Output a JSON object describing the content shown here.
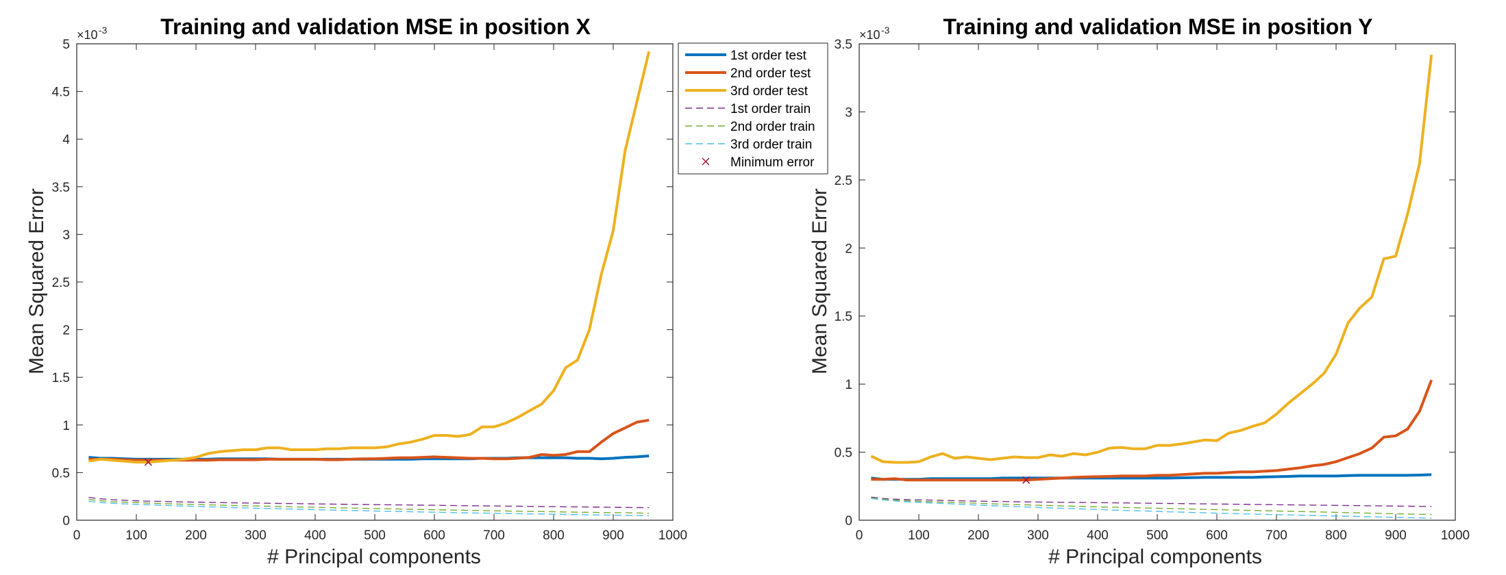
{
  "chart_data": [
    {
      "type": "line",
      "title": "Training and validation MSE in position X",
      "xlabel": "# Principal components",
      "ylabel": "Mean Squared Error",
      "y_exponent_base": "×10",
      "y_exponent_power": "-3",
      "xlim": [
        0,
        1000
      ],
      "ylim": [
        0,
        5
      ],
      "xticks": [
        0,
        100,
        200,
        300,
        400,
        500,
        600,
        700,
        800,
        900,
        1000
      ],
      "xtick_labels": [
        "0",
        "100",
        "200",
        "300",
        "400",
        "500",
        "600",
        "700",
        "800",
        "900",
        "1000"
      ],
      "yticks": [
        0,
        0.5,
        1,
        1.5,
        2,
        2.5,
        3,
        3.5,
        4,
        4.5,
        5
      ],
      "ytick_labels": [
        "0",
        "0.5",
        "1",
        "1.5",
        "2",
        "2.5",
        "3",
        "3.5",
        "4",
        "4.5",
        "5"
      ],
      "grid": false,
      "legend": "outside-right",
      "x": [
        20,
        40,
        60,
        80,
        100,
        120,
        140,
        160,
        180,
        200,
        220,
        240,
        260,
        280,
        300,
        320,
        340,
        360,
        380,
        400,
        420,
        440,
        460,
        480,
        500,
        520,
        540,
        560,
        580,
        600,
        620,
        640,
        660,
        680,
        700,
        720,
        740,
        760,
        780,
        800,
        820,
        840,
        860,
        880,
        900,
        920,
        940,
        960
      ],
      "series": [
        {
          "name": "1st order test",
          "style": "solid",
          "color": "#0072BD",
          "values": [
            0.66,
            0.65,
            0.65,
            0.645,
            0.64,
            0.64,
            0.64,
            0.64,
            0.64,
            0.64,
            0.64,
            0.645,
            0.645,
            0.645,
            0.645,
            0.645,
            0.64,
            0.64,
            0.64,
            0.64,
            0.64,
            0.64,
            0.64,
            0.64,
            0.64,
            0.64,
            0.64,
            0.64,
            0.645,
            0.645,
            0.645,
            0.645,
            0.645,
            0.65,
            0.65,
            0.65,
            0.655,
            0.655,
            0.655,
            0.655,
            0.655,
            0.65,
            0.65,
            0.645,
            0.65,
            0.66,
            0.665,
            0.675
          ]
        },
        {
          "name": "2nd order test",
          "style": "solid",
          "color": "#D95319",
          "values": [
            0.64,
            0.64,
            0.64,
            0.635,
            0.63,
            0.63,
            0.63,
            0.63,
            0.63,
            0.63,
            0.63,
            0.635,
            0.635,
            0.635,
            0.635,
            0.64,
            0.64,
            0.64,
            0.64,
            0.64,
            0.635,
            0.635,
            0.64,
            0.645,
            0.645,
            0.65,
            0.655,
            0.655,
            0.66,
            0.665,
            0.66,
            0.655,
            0.65,
            0.65,
            0.645,
            0.645,
            0.65,
            0.66,
            0.69,
            0.68,
            0.69,
            0.72,
            0.72,
            0.82,
            0.91,
            0.97,
            1.03,
            1.05
          ]
        },
        {
          "name": "3rd order test",
          "style": "solid",
          "color": "#EDB120",
          "values": [
            0.62,
            0.64,
            0.63,
            0.62,
            0.61,
            0.61,
            0.62,
            0.63,
            0.64,
            0.66,
            0.7,
            0.72,
            0.73,
            0.74,
            0.74,
            0.76,
            0.76,
            0.74,
            0.74,
            0.74,
            0.75,
            0.75,
            0.76,
            0.76,
            0.76,
            0.77,
            0.8,
            0.82,
            0.85,
            0.89,
            0.89,
            0.88,
            0.9,
            0.98,
            0.98,
            1.02,
            1.08,
            1.15,
            1.22,
            1.36,
            1.6,
            1.68,
            2.0,
            2.58,
            3.04,
            3.88,
            4.4,
            4.92
          ]
        },
        {
          "name": "1st order train",
          "style": "dashed",
          "color": "#7E2F8E",
          "values": [
            0.24,
            0.225,
            0.215,
            0.21,
            0.205,
            0.2,
            0.198,
            0.195,
            0.192,
            0.19,
            0.188,
            0.185,
            0.183,
            0.181,
            0.18,
            0.178,
            0.176,
            0.175,
            0.173,
            0.172,
            0.17,
            0.168,
            0.167,
            0.165,
            0.164,
            0.162,
            0.161,
            0.16,
            0.158,
            0.157,
            0.155,
            0.154,
            0.153,
            0.151,
            0.15,
            0.148,
            0.147,
            0.145,
            0.144,
            0.143,
            0.141,
            0.14,
            0.139,
            0.137,
            0.136,
            0.134,
            0.133,
            0.132
          ]
        },
        {
          "name": "2nd order train",
          "style": "dashed",
          "color": "#77AC30",
          "values": [
            0.22,
            0.205,
            0.195,
            0.19,
            0.185,
            0.18,
            0.175,
            0.172,
            0.168,
            0.165,
            0.162,
            0.158,
            0.155,
            0.152,
            0.15,
            0.147,
            0.144,
            0.141,
            0.138,
            0.136,
            0.133,
            0.13,
            0.128,
            0.125,
            0.123,
            0.12,
            0.118,
            0.115,
            0.113,
            0.11,
            0.108,
            0.106,
            0.103,
            0.101,
            0.099,
            0.097,
            0.095,
            0.093,
            0.091,
            0.089,
            0.087,
            0.085,
            0.083,
            0.081,
            0.079,
            0.078,
            0.076,
            0.074
          ]
        },
        {
          "name": "3rd order train",
          "style": "dashed",
          "color": "#4DBEEE",
          "values": [
            0.2,
            0.185,
            0.178,
            0.172,
            0.167,
            0.162,
            0.157,
            0.153,
            0.149,
            0.145,
            0.141,
            0.137,
            0.133,
            0.13,
            0.126,
            0.123,
            0.12,
            0.117,
            0.114,
            0.111,
            0.108,
            0.105,
            0.102,
            0.1,
            0.097,
            0.094,
            0.092,
            0.089,
            0.087,
            0.084,
            0.082,
            0.079,
            0.077,
            0.075,
            0.073,
            0.071,
            0.069,
            0.067,
            0.065,
            0.063,
            0.061,
            0.059,
            0.057,
            0.055,
            0.053,
            0.051,
            0.049,
            0.047
          ]
        }
      ],
      "minimum_marker": {
        "name": "Minimum error",
        "color": "#A2142F",
        "x": 120,
        "y": 0.61
      }
    },
    {
      "type": "line",
      "title": "Training and validation MSE in position Y",
      "xlabel": "# Principal components",
      "ylabel": "Mean Squared Error",
      "y_exponent_base": "×10",
      "y_exponent_power": "-3",
      "xlim": [
        0,
        1000
      ],
      "ylim": [
        0,
        3.5
      ],
      "xticks": [
        0,
        100,
        200,
        300,
        400,
        500,
        600,
        700,
        800,
        900,
        1000
      ],
      "xtick_labels": [
        "0",
        "100",
        "200",
        "300",
        "400",
        "500",
        "600",
        "700",
        "800",
        "900",
        "1000"
      ],
      "yticks": [
        0,
        0.5,
        1,
        1.5,
        2,
        2.5,
        3,
        3.5
      ],
      "ytick_labels": [
        "0",
        "0.5",
        "1",
        "1.5",
        "2",
        "2.5",
        "3",
        "3.5"
      ],
      "grid": false,
      "x": [
        20,
        40,
        60,
        80,
        100,
        120,
        140,
        160,
        180,
        200,
        220,
        240,
        260,
        280,
        300,
        320,
        340,
        360,
        380,
        400,
        420,
        440,
        460,
        480,
        500,
        520,
        540,
        560,
        580,
        600,
        620,
        640,
        660,
        680,
        700,
        720,
        740,
        760,
        780,
        800,
        820,
        840,
        860,
        880,
        900,
        920,
        940,
        960
      ],
      "series": [
        {
          "name": "1st order test",
          "style": "solid",
          "color": "#0072BD",
          "values": [
            0.31,
            0.3,
            0.3,
            0.3,
            0.3,
            0.305,
            0.305,
            0.305,
            0.305,
            0.305,
            0.305,
            0.31,
            0.31,
            0.31,
            0.31,
            0.31,
            0.31,
            0.31,
            0.31,
            0.31,
            0.31,
            0.31,
            0.31,
            0.31,
            0.31,
            0.31,
            0.312,
            0.313,
            0.315,
            0.315,
            0.315,
            0.315,
            0.315,
            0.318,
            0.32,
            0.322,
            0.325,
            0.325,
            0.325,
            0.325,
            0.328,
            0.33,
            0.33,
            0.33,
            0.33,
            0.33,
            0.332,
            0.335
          ]
        },
        {
          "name": "2nd order test",
          "style": "solid",
          "color": "#D95319",
          "values": [
            0.3,
            0.3,
            0.305,
            0.295,
            0.295,
            0.295,
            0.295,
            0.295,
            0.295,
            0.295,
            0.295,
            0.295,
            0.295,
            0.295,
            0.3,
            0.305,
            0.31,
            0.315,
            0.318,
            0.32,
            0.322,
            0.325,
            0.325,
            0.325,
            0.33,
            0.33,
            0.335,
            0.34,
            0.345,
            0.345,
            0.35,
            0.355,
            0.355,
            0.36,
            0.365,
            0.375,
            0.385,
            0.4,
            0.41,
            0.43,
            0.46,
            0.49,
            0.53,
            0.61,
            0.62,
            0.67,
            0.8,
            1.03
          ]
        },
        {
          "name": "3rd order test",
          "style": "solid",
          "color": "#EDB120",
          "values": [
            0.47,
            0.43,
            0.425,
            0.425,
            0.43,
            0.465,
            0.49,
            0.455,
            0.465,
            0.455,
            0.445,
            0.455,
            0.465,
            0.46,
            0.46,
            0.48,
            0.47,
            0.49,
            0.48,
            0.5,
            0.53,
            0.535,
            0.525,
            0.525,
            0.55,
            0.55,
            0.56,
            0.575,
            0.59,
            0.585,
            0.64,
            0.66,
            0.69,
            0.715,
            0.78,
            0.86,
            0.93,
            1.0,
            1.08,
            1.22,
            1.45,
            1.56,
            1.64,
            1.92,
            1.94,
            2.25,
            2.62,
            3.42
          ]
        },
        {
          "name": "1st order train",
          "style": "dashed",
          "color": "#7E2F8E",
          "values": [
            0.17,
            0.16,
            0.155,
            0.152,
            0.15,
            0.148,
            0.146,
            0.144,
            0.142,
            0.14,
            0.139,
            0.138,
            0.136,
            0.135,
            0.134,
            0.133,
            0.132,
            0.131,
            0.13,
            0.129,
            0.128,
            0.127,
            0.126,
            0.125,
            0.124,
            0.123,
            0.122,
            0.121,
            0.12,
            0.119,
            0.118,
            0.117,
            0.116,
            0.115,
            0.114,
            0.113,
            0.112,
            0.111,
            0.11,
            0.109,
            0.108,
            0.107,
            0.106,
            0.105,
            0.104,
            0.103,
            0.102,
            0.101
          ]
        },
        {
          "name": "2nd order train",
          "style": "dashed",
          "color": "#77AC30",
          "values": [
            0.165,
            0.155,
            0.148,
            0.143,
            0.139,
            0.136,
            0.133,
            0.13,
            0.127,
            0.124,
            0.121,
            0.118,
            0.115,
            0.113,
            0.11,
            0.108,
            0.105,
            0.103,
            0.1,
            0.098,
            0.096,
            0.094,
            0.092,
            0.09,
            0.088,
            0.086,
            0.084,
            0.082,
            0.08,
            0.078,
            0.076,
            0.074,
            0.072,
            0.07,
            0.068,
            0.066,
            0.064,
            0.062,
            0.06,
            0.058,
            0.056,
            0.054,
            0.052,
            0.05,
            0.048,
            0.046,
            0.044,
            0.042
          ]
        },
        {
          "name": "3rd order train",
          "style": "dashed",
          "color": "#4DBEEE",
          "values": [
            0.16,
            0.15,
            0.142,
            0.136,
            0.131,
            0.127,
            0.123,
            0.119,
            0.115,
            0.111,
            0.107,
            0.104,
            0.1,
            0.097,
            0.094,
            0.091,
            0.088,
            0.085,
            0.082,
            0.079,
            0.076,
            0.073,
            0.07,
            0.068,
            0.065,
            0.062,
            0.06,
            0.057,
            0.055,
            0.052,
            0.05,
            0.048,
            0.045,
            0.043,
            0.041,
            0.039,
            0.037,
            0.035,
            0.033,
            0.031,
            0.029,
            0.027,
            0.025,
            0.023,
            0.021,
            0.019,
            0.017,
            0.015
          ]
        }
      ],
      "minimum_marker": {
        "name": "Minimum error",
        "color": "#A2142F",
        "x": 280,
        "y": 0.295
      }
    }
  ]
}
